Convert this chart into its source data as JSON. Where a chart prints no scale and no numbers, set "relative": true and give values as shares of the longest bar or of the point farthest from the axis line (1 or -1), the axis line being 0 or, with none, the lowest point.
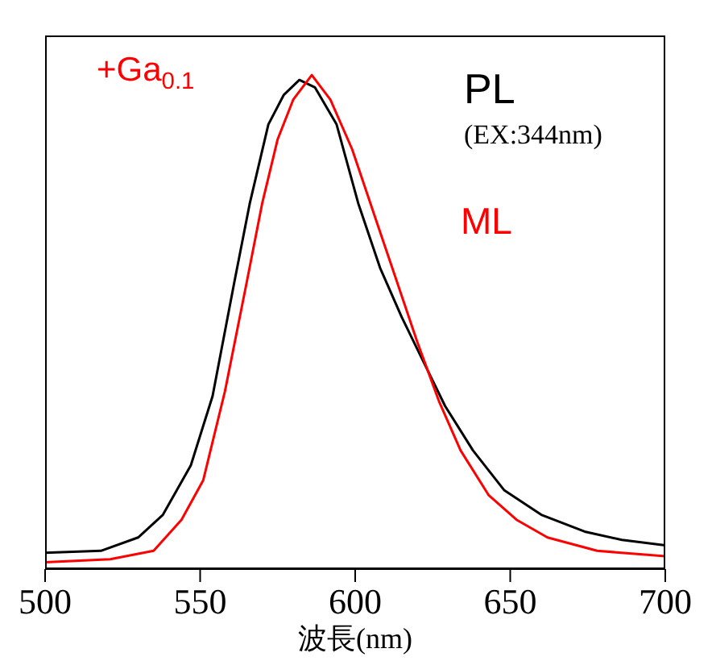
{
  "chart_data": {
    "type": "line",
    "xlabel": "波長(nm)",
    "relative": true,
    "xlim": [
      500,
      700
    ],
    "xticks": [
      500,
      550,
      600,
      650,
      700
    ],
    "marker": "none",
    "line_style": "solid",
    "tick_labels": "x",
    "annotations": [
      "+Ga$_{0.1}$",
      "(EX:344nm)"
    ],
    "series": [
      {
        "name": "PL",
        "color": "#000000",
        "x": [
          500,
          518,
          530,
          538,
          547,
          554,
          561,
          566,
          572,
          577,
          582,
          587,
          594,
          601,
          608,
          615,
          622,
          629,
          638,
          648,
          660,
          674,
          686,
          700
        ],
        "values": [
          0.033,
          0.037,
          0.064,
          0.11,
          0.21,
          0.35,
          0.58,
          0.74,
          0.9,
          0.96,
          0.99,
          0.975,
          0.9,
          0.74,
          0.61,
          0.51,
          0.42,
          0.33,
          0.24,
          0.16,
          0.11,
          0.076,
          0.059,
          0.048
        ]
      },
      {
        "name": "ML",
        "color": "#ff0000",
        "x": [
          500,
          521,
          535,
          544,
          551,
          558,
          565,
          570,
          575,
          580,
          586,
          592,
          599,
          606,
          613,
          620,
          627,
          634,
          643,
          652,
          662,
          678,
          700
        ],
        "values": [
          0.014,
          0.02,
          0.037,
          0.1,
          0.18,
          0.36,
          0.58,
          0.74,
          0.87,
          0.95,
          1.0,
          0.95,
          0.85,
          0.72,
          0.59,
          0.46,
          0.34,
          0.24,
          0.15,
          0.1,
          0.064,
          0.037,
          0.026
        ]
      }
    ]
  }
}
